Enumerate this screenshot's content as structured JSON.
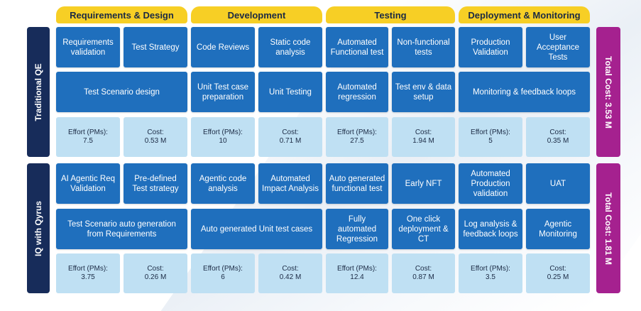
{
  "phases": [
    "Requirements & Design",
    "Development",
    "Testing",
    "Deployment & Monitoring"
  ],
  "traditional": {
    "label": "Traditional QE",
    "total": "Total Cost: 3.53 M",
    "row1": [
      "Requirements validation",
      "Test Strategy",
      "Code Reviews",
      "Static code analysis",
      "Automated Functional test",
      "Non-functional tests",
      "Production Validation",
      "User Acceptance Tests"
    ],
    "row2": [
      "Test Scenario design",
      "Unit Test case preparation",
      "Unit Testing",
      "Automated regression",
      "Test env & data setup",
      "Monitoring & feedback loops"
    ],
    "metrics": [
      {
        "label": "Effort (PMs):",
        "value": "7.5"
      },
      {
        "label": "Cost:",
        "value": "0.53 M"
      },
      {
        "label": "Effort (PMs):",
        "value": "10"
      },
      {
        "label": "Cost:",
        "value": "0.71 M"
      },
      {
        "label": "Effort (PMs):",
        "value": "27.5"
      },
      {
        "label": "Cost:",
        "value": "1.94 M"
      },
      {
        "label": "Effort (PMs):",
        "value": "5"
      },
      {
        "label": "Cost:",
        "value": "0.35 M"
      }
    ]
  },
  "qyrus": {
    "label": "IQ with Qyrus",
    "total": "Total Cost: 1.81 M",
    "row1": [
      "AI Agentic Req Validation",
      "Pre-defined Test strategy",
      "Agentic code analysis",
      "Automated Impact Analysis",
      "Auto generated functional test",
      "Early NFT",
      "Automated Production validation",
      "UAT"
    ],
    "row2": [
      "Test Scenario auto generation from Requirements",
      "Auto generated Unit test cases",
      "Fully automated Regression",
      "One click deployment & CT",
      "Log analysis & feedback loops",
      "Agentic Monitoring"
    ],
    "metrics": [
      {
        "label": "Effort (PMs):",
        "value": "3.75"
      },
      {
        "label": "Cost:",
        "value": "0.26 M"
      },
      {
        "label": "Effort (PMs):",
        "value": "6"
      },
      {
        "label": "Cost:",
        "value": "0.42 M"
      },
      {
        "label": "Effort (PMs):",
        "value": "12.4"
      },
      {
        "label": "Cost:",
        "value": "0.87 M"
      },
      {
        "label": "Effort (PMs):",
        "value": "3.5"
      },
      {
        "label": "Cost:",
        "value": "0.25 M"
      }
    ]
  },
  "colors": {
    "phase": "#f7cf25",
    "cell": "#1f6fbd",
    "metric": "#bfe0f3",
    "side": "#172c5a",
    "total": "#a5218f"
  }
}
